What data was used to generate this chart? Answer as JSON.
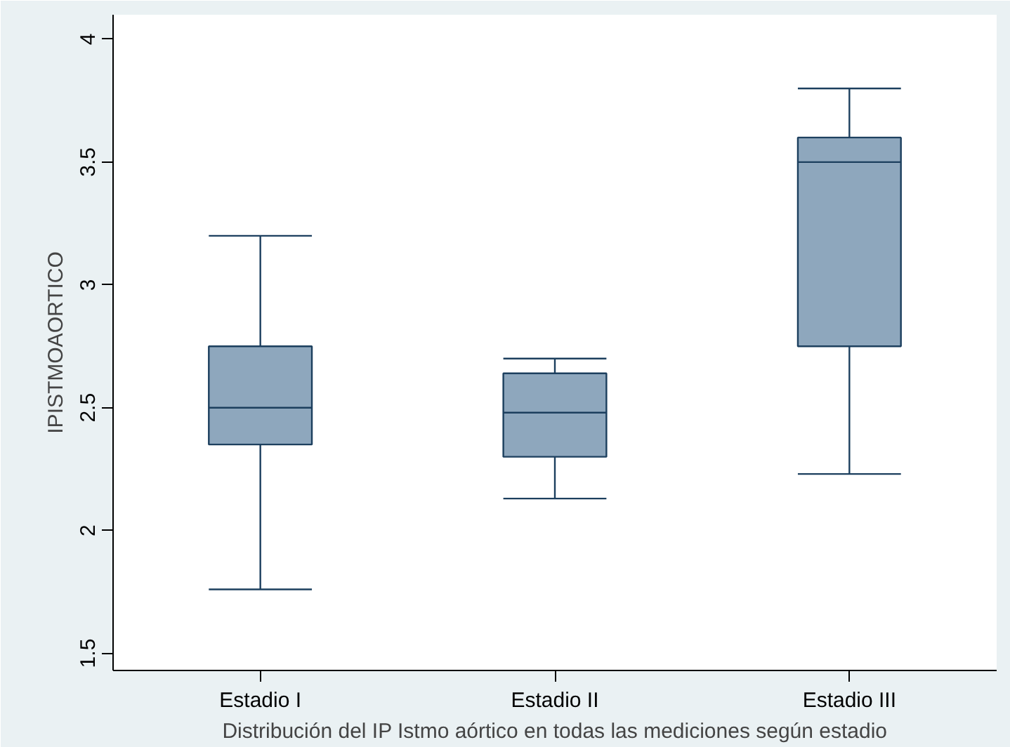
{
  "chart_data": {
    "type": "box",
    "categories": [
      "Estadio I",
      "Estadio II",
      "Estadio III"
    ],
    "boxes": [
      {
        "low": 1.76,
        "q1": 2.35,
        "median": 2.5,
        "q3": 2.75,
        "high": 3.2
      },
      {
        "low": 2.13,
        "q1": 2.3,
        "median": 2.48,
        "q3": 2.64,
        "high": 2.7
      },
      {
        "low": 2.23,
        "q1": 2.75,
        "median": 3.5,
        "q3": 3.6,
        "high": 3.8
      }
    ],
    "color": "#8ea7bd",
    "ylabel": "IPISTMOAORTICO",
    "xlabel": "Distribución del IP Istmo aórtico en todas las mediciones según estadio",
    "ylim": [
      1.43,
      4.1
    ],
    "yticks": [
      1.5,
      2,
      2.5,
      3,
      3.5,
      4
    ],
    "grid": false
  }
}
